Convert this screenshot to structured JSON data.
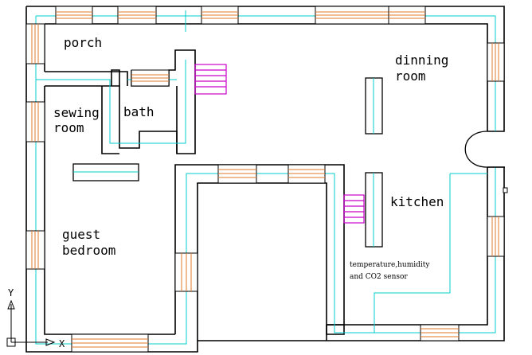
{
  "rooms": {
    "porch": "porch",
    "dinning_room": [
      "dinning",
      "room"
    ],
    "bath": "bath",
    "sewing_room": [
      "sewing",
      "room"
    ],
    "kitchen": "kitchen",
    "guest_bedroom": [
      "guest",
      "bedroom"
    ]
  },
  "sensor": {
    "text": [
      "temperature,humidity",
      "and CO2 sensor"
    ]
  },
  "ucs": {
    "x_label": "X",
    "y_label": "Y"
  },
  "colors": {
    "wall": "#000000",
    "inner_line": "#00cccc",
    "window": "#e07a28",
    "stairs": "#cc00cc",
    "background": "#ffffff"
  }
}
